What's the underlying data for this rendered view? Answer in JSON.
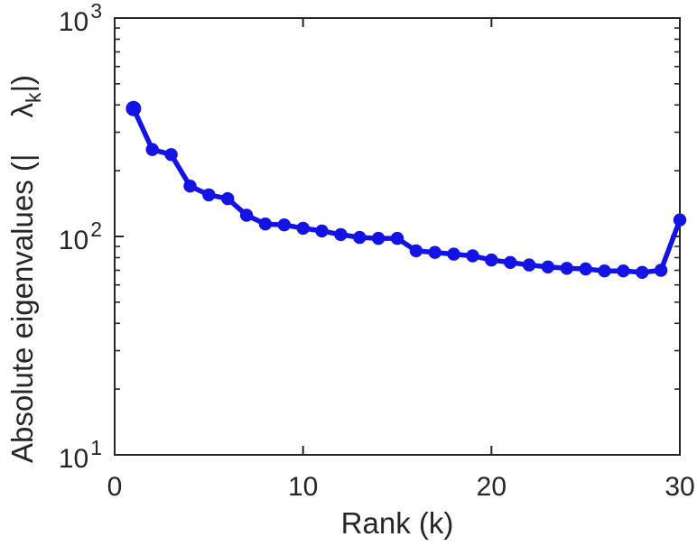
{
  "chart_data": {
    "type": "line",
    "title": "",
    "xlabel": "Rank (k)",
    "ylabel_parts": {
      "prefix": "Absolute eigenvalues (|",
      "lambda": "λ",
      "lambda_sub": "k",
      "suffix": "|)"
    },
    "x": [
      1,
      2,
      3,
      4,
      5,
      6,
      7,
      8,
      9,
      10,
      11,
      12,
      13,
      14,
      15,
      16,
      17,
      18,
      19,
      20,
      21,
      22,
      23,
      24,
      25,
      26,
      27,
      28,
      29,
      30
    ],
    "values": [
      385,
      250,
      237,
      170,
      155,
      149,
      125,
      114,
      113,
      109,
      106,
      102,
      99,
      98,
      98,
      86,
      84.5,
      83,
      81.5,
      78,
      76,
      74,
      72.5,
      71.5,
      71,
      69.5,
      69.5,
      68.5,
      70,
      119
    ],
    "xlim": [
      0,
      30
    ],
    "ylim": [
      10,
      1000
    ],
    "yscale": "log",
    "x_ticks": [
      0,
      10,
      20,
      30
    ],
    "y_ticks": [
      {
        "base": "10",
        "exp": "1",
        "value": 10
      },
      {
        "base": "10",
        "exp": "2",
        "value": 100
      },
      {
        "base": "10",
        "exp": "3",
        "value": 1000
      }
    ],
    "y_minor_ticks": [
      20,
      30,
      40,
      50,
      60,
      70,
      80,
      90,
      200,
      300,
      400,
      500,
      600,
      700,
      800,
      900
    ],
    "line_color": "#1313e6",
    "axis_color": "#262626",
    "marker": "filled-circle",
    "grid": false,
    "legend_position": "none"
  }
}
